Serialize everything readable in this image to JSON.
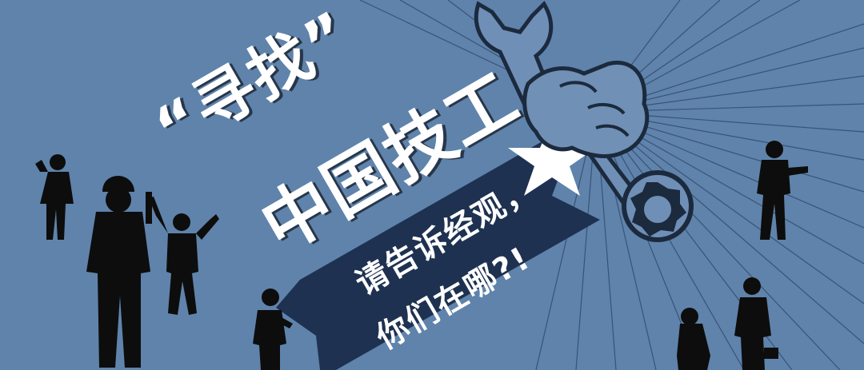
{
  "banner": {
    "title_line1": "“寻找”",
    "title_line2": "中国技工",
    "subtitle_line1": "请告诉经观，",
    "subtitle_line2": "你们在哪?!"
  },
  "colors": {
    "background": "#5f83ab",
    "ribbon": "#1e3150",
    "silhouette": "#0d0d0d",
    "text": "#ffffff"
  },
  "icons": [
    "wrench-icon",
    "fist-icon",
    "worker-silhouette-icon",
    "sunburst-rays"
  ]
}
